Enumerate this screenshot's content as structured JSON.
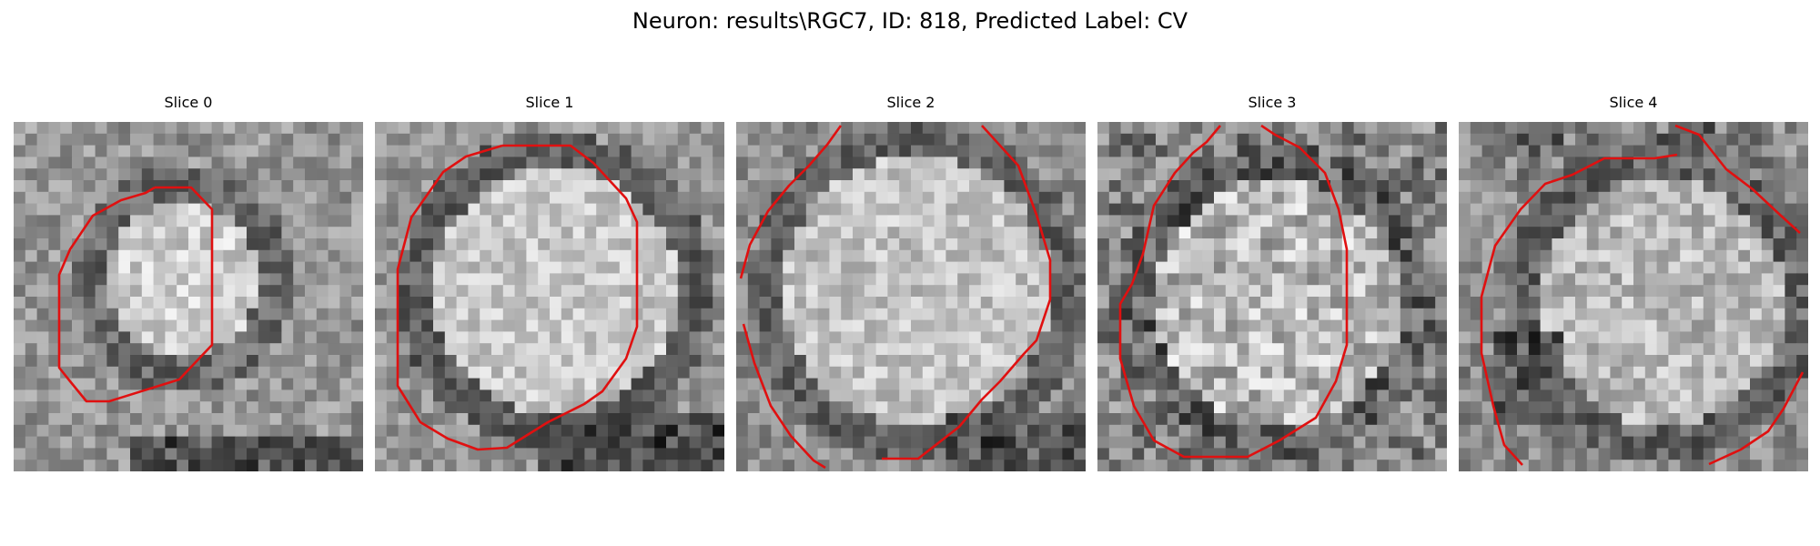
{
  "figure": {
    "title": "Neuron: results\\RGC7, ID: 818, Predicted Label: CV"
  },
  "panels": [
    {
      "title": "Slice 0"
    },
    {
      "title": "Slice 1"
    },
    {
      "title": "Slice 2"
    },
    {
      "title": "Slice 3"
    },
    {
      "title": "Slice 4"
    }
  ],
  "colors": {
    "contour": "#e01010",
    "background": "#ffffff",
    "image": "grayscale"
  }
}
